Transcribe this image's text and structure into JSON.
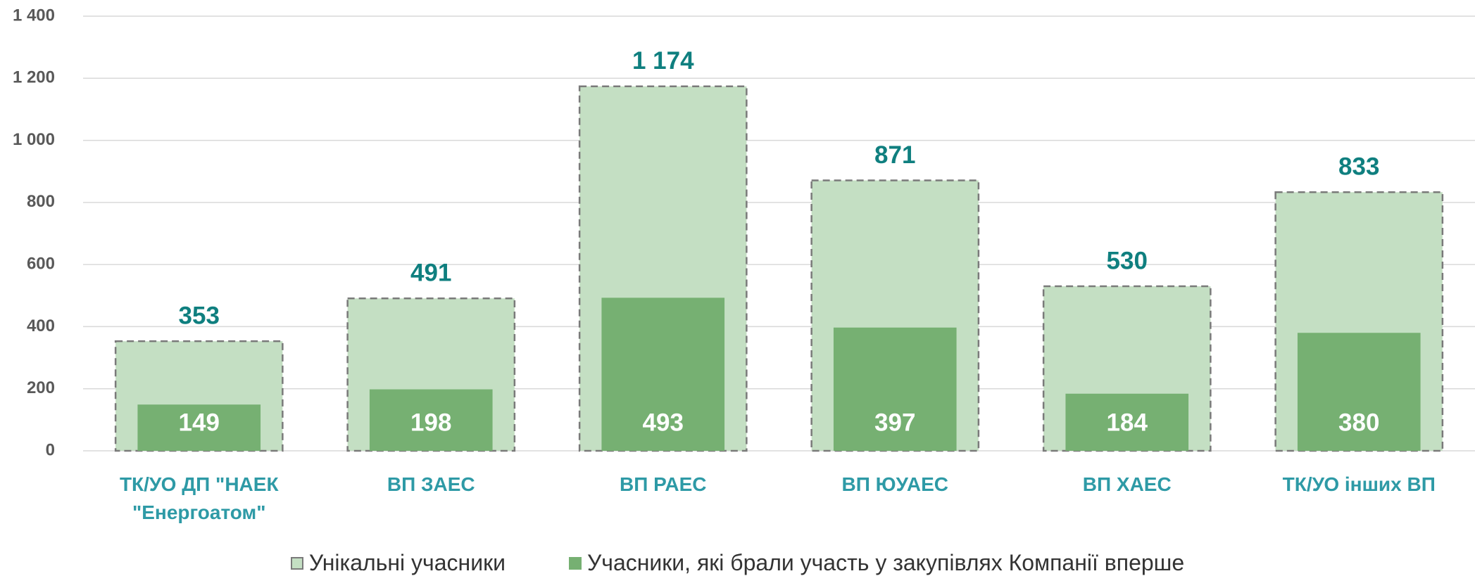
{
  "chart_data": {
    "type": "bar",
    "categories": [
      "ТК/УО ДП \"НАЕК \"Енергоатом\"",
      "ВП ЗАЕС",
      "ВП РАЕС",
      "ВП ЮУАЕС",
      "ВП ХАЕС",
      "ТК/УО інших ВП"
    ],
    "series": [
      {
        "name": "Унікальні учасники",
        "color": "#c4dfc3",
        "values": [
          353,
          491,
          1174,
          871,
          530,
          833
        ],
        "value_labels": [
          "353",
          "491",
          "1 174",
          "871",
          "530",
          "833"
        ]
      },
      {
        "name": "Учасники, які брали участь у закупівлях Компанії вперше",
        "color": "#76b072",
        "values": [
          149,
          198,
          493,
          397,
          184,
          380
        ]
      }
    ],
    "ylim": [
      0,
      1400
    ],
    "yticks": [
      0,
      200,
      400,
      600,
      800,
      {
        "value": 1000,
        "label": "1 000"
      },
      {
        "value": 1200,
        "label": "1 200"
      },
      {
        "value": 1400,
        "label": "1 400"
      }
    ],
    "grid": true
  }
}
